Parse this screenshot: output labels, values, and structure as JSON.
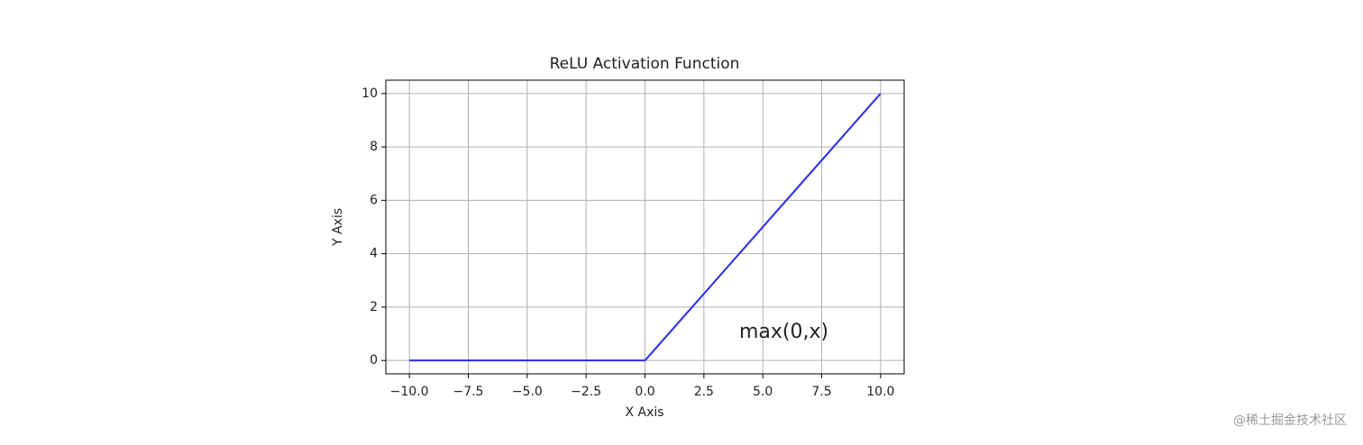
{
  "chart_data": {
    "type": "line",
    "title": "ReLU Activation Function",
    "x_label": "X Axis",
    "y_label": "Y Axis",
    "x": [
      -10,
      0,
      10
    ],
    "values": [
      0,
      0,
      10
    ],
    "color": "#2a2af0",
    "xlim": [
      -11,
      11
    ],
    "ylim": [
      -0.5,
      10.5
    ],
    "xticks": [
      {
        "value": -10,
        "label": "−10.0"
      },
      {
        "value": -7.5,
        "label": "−7.5"
      },
      {
        "value": -5,
        "label": "−5.0"
      },
      {
        "value": -2.5,
        "label": "−2.5"
      },
      {
        "value": 0,
        "label": "0.0"
      },
      {
        "value": 2.5,
        "label": "2.5"
      },
      {
        "value": 5,
        "label": "5.0"
      },
      {
        "value": 7.5,
        "label": "7.5"
      },
      {
        "value": 10,
        "label": "10.0"
      }
    ],
    "yticks": [
      0,
      2,
      4,
      6,
      8,
      10
    ],
    "grid": true,
    "annotation": "max(0,x)"
  },
  "watermark": "@稀土掘金技术社区"
}
